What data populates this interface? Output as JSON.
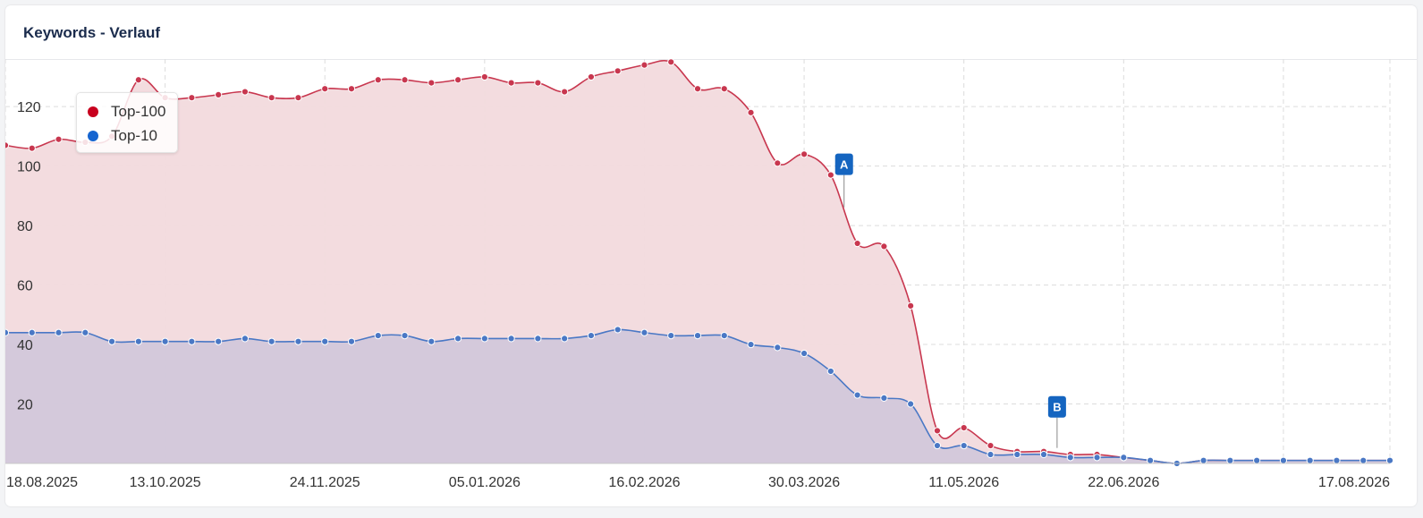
{
  "card": {
    "title": "Keywords - Verlauf"
  },
  "colors": {
    "top100": "#c8374f",
    "top100_fill": "#f2dadd",
    "top10": "#4a78c5",
    "top10_fill": "#cec5da",
    "marker": "#1565c0",
    "grid": "#dcdcdc"
  },
  "chart_data": {
    "type": "area",
    "title": "Keywords - Verlauf",
    "xlabel": "",
    "ylabel": "",
    "ylim": [
      0,
      136
    ],
    "yticks": [
      20,
      40,
      60,
      80,
      100,
      120
    ],
    "xticks": [
      "18.08.2025",
      "13.10.2025",
      "24.11.2025",
      "05.01.2026",
      "16.02.2026",
      "30.03.2026",
      "11.05.2026",
      "22.06.2026",
      "17.08.2026"
    ],
    "grid": true,
    "legend_position": "top-left",
    "series": [
      {
        "name": "Top-100",
        "values": [
          107,
          106,
          109,
          108,
          110,
          129,
          123,
          123,
          124,
          125,
          123,
          123,
          126,
          126,
          129,
          129,
          128,
          129,
          130,
          128,
          128,
          125,
          130,
          132,
          134,
          135,
          126,
          126,
          118,
          101,
          104,
          97,
          74,
          73,
          53,
          11,
          12,
          6,
          4,
          4,
          3,
          3,
          2,
          1,
          0,
          1,
          1,
          1,
          1,
          1,
          1,
          1,
          1
        ]
      },
      {
        "name": "Top-10",
        "values": [
          44,
          44,
          44,
          44,
          41,
          41,
          41,
          41,
          41,
          42,
          41,
          41,
          41,
          41,
          43,
          43,
          41,
          42,
          42,
          42,
          42,
          42,
          43,
          45,
          44,
          43,
          43,
          43,
          40,
          39,
          37,
          31,
          23,
          22,
          20,
          6,
          6,
          3,
          3,
          3,
          2,
          2,
          2,
          1,
          0,
          1,
          1,
          1,
          1,
          1,
          1,
          1,
          1
        ]
      }
    ],
    "annotations": [
      {
        "label": "A",
        "index": 31.5
      },
      {
        "label": "B",
        "index": 39.5
      }
    ]
  }
}
